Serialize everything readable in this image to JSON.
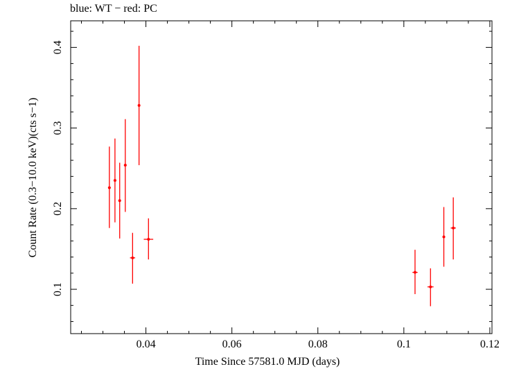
{
  "chart_data": {
    "type": "scatter",
    "title": "blue: WT − red: PC",
    "xlabel": "Time Since 57581.0 MJD (days)",
    "ylabel": "Count Rate (0.3−10.0 keV)(cts s−1)",
    "xlim": [
      0.0225,
      0.1205
    ],
    "ylim": [
      0.045,
      0.433
    ],
    "x_ticks": [
      {
        "value": 0.04,
        "label": "0.04"
      },
      {
        "value": 0.06,
        "label": "0.06"
      },
      {
        "value": 0.08,
        "label": "0.08"
      },
      {
        "value": 0.1,
        "label": "0.1"
      },
      {
        "value": 0.12,
        "label": "0.12"
      }
    ],
    "y_ticks": [
      {
        "value": 0.1,
        "label": "0.1"
      },
      {
        "value": 0.2,
        "label": "0.2"
      },
      {
        "value": 0.3,
        "label": "0.3"
      },
      {
        "value": 0.4,
        "label": "0.4"
      }
    ],
    "grid": false,
    "series": [
      {
        "color": "#ff0000",
        "points": [
          {
            "x": 0.0315,
            "xerr": 0.0003,
            "y": 0.226,
            "ylo": 0.176,
            "yhi": 0.277
          },
          {
            "x": 0.0328,
            "xerr": 0.0003,
            "y": 0.235,
            "ylo": 0.183,
            "yhi": 0.287
          },
          {
            "x": 0.0339,
            "xerr": 0.0003,
            "y": 0.21,
            "ylo": 0.163,
            "yhi": 0.257
          },
          {
            "x": 0.0352,
            "xerr": 0.0003,
            "y": 0.254,
            "ylo": 0.196,
            "yhi": 0.311
          },
          {
            "x": 0.0369,
            "xerr": 0.0006,
            "y": 0.139,
            "ylo": 0.107,
            "yhi": 0.17
          },
          {
            "x": 0.0384,
            "xerr": 0.0002,
            "y": 0.328,
            "ylo": 0.254,
            "yhi": 0.402
          },
          {
            "x": 0.0406,
            "xerr": 0.0011,
            "y": 0.162,
            "ylo": 0.137,
            "yhi": 0.188
          },
          {
            "x": 0.1026,
            "xerr": 0.0006,
            "y": 0.121,
            "ylo": 0.094,
            "yhi": 0.149
          },
          {
            "x": 0.1062,
            "xerr": 0.0007,
            "y": 0.103,
            "ylo": 0.079,
            "yhi": 0.126
          },
          {
            "x": 0.1093,
            "xerr": 0.0003,
            "y": 0.165,
            "ylo": 0.128,
            "yhi": 0.202
          },
          {
            "x": 0.1115,
            "xerr": 0.0006,
            "y": 0.176,
            "ylo": 0.137,
            "yhi": 0.214
          }
        ]
      }
    ]
  }
}
